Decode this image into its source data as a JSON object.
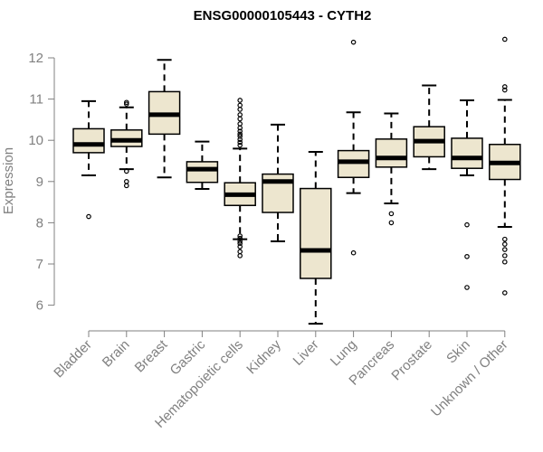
{
  "chart_data": {
    "type": "boxplot",
    "title": "ENSG00000105443 - CYTH2",
    "xlabel": "",
    "ylabel": "Expression",
    "ylim": [
      5.5,
      12.5
    ],
    "yticks": [
      6,
      7,
      8,
      9,
      10,
      11,
      12
    ],
    "box_fill": "#ede6cf",
    "box_stroke": "#000000",
    "axis_color": "#808080",
    "categories": [
      "Bladder",
      "Brain",
      "Breast",
      "Gastric",
      "Hematopoietic cells",
      "Kidney",
      "Liver",
      "Lung",
      "Pancreas",
      "Prostate",
      "Skin",
      "Unknown / Other"
    ],
    "boxes": [
      {
        "category": "Bladder",
        "whisker_low": 9.15,
        "q1": 9.7,
        "median": 9.9,
        "q3": 10.28,
        "whisker_high": 10.95,
        "outliers": [
          8.15
        ]
      },
      {
        "category": "Brain",
        "whisker_low": 9.3,
        "q1": 9.85,
        "median": 10.0,
        "q3": 10.25,
        "whisker_high": 10.8,
        "outliers": [
          8.9,
          9.0,
          9.25,
          10.88,
          10.92
        ]
      },
      {
        "category": "Breast",
        "whisker_low": 9.1,
        "q1": 10.15,
        "median": 10.62,
        "q3": 11.18,
        "whisker_high": 11.95,
        "outliers": []
      },
      {
        "category": "Gastric",
        "whisker_low": 8.82,
        "q1": 8.98,
        "median": 9.3,
        "q3": 9.48,
        "whisker_high": 9.97,
        "outliers": []
      },
      {
        "category": "Hematopoietic cells",
        "whisker_low": 7.6,
        "q1": 8.42,
        "median": 8.68,
        "q3": 8.97,
        "whisker_high": 9.8,
        "outliers": [
          7.2,
          7.3,
          7.42,
          7.5,
          7.55,
          7.62,
          7.68,
          9.88,
          9.95,
          10.02,
          10.1,
          10.15,
          10.22,
          10.3,
          10.4,
          10.52,
          10.62,
          10.75,
          10.85,
          10.97
        ]
      },
      {
        "category": "Kidney",
        "whisker_low": 7.55,
        "q1": 8.25,
        "median": 9.0,
        "q3": 9.18,
        "whisker_high": 10.38,
        "outliers": []
      },
      {
        "category": "Liver",
        "whisker_low": 5.55,
        "q1": 6.65,
        "median": 7.33,
        "q3": 8.83,
        "whisker_high": 9.72,
        "outliers": []
      },
      {
        "category": "Lung",
        "whisker_low": 8.72,
        "q1": 9.1,
        "median": 9.48,
        "q3": 9.75,
        "whisker_high": 10.68,
        "outliers": [
          7.27,
          12.38
        ]
      },
      {
        "category": "Pancreas",
        "whisker_low": 8.47,
        "q1": 9.35,
        "median": 9.57,
        "q3": 10.03,
        "whisker_high": 10.65,
        "outliers": [
          8.0,
          8.22
        ]
      },
      {
        "category": "Prostate",
        "whisker_low": 9.3,
        "q1": 9.6,
        "median": 9.98,
        "q3": 10.33,
        "whisker_high": 11.33,
        "outliers": []
      },
      {
        "category": "Skin",
        "whisker_low": 9.15,
        "q1": 9.32,
        "median": 9.57,
        "q3": 10.05,
        "whisker_high": 10.97,
        "outliers": [
          6.43,
          7.18,
          7.95
        ]
      },
      {
        "category": "Unknown / Other",
        "whisker_low": 7.9,
        "q1": 9.05,
        "median": 9.45,
        "q3": 9.9,
        "whisker_high": 10.98,
        "outliers": [
          6.3,
          7.05,
          7.2,
          7.35,
          7.48,
          7.6,
          11.22,
          11.3,
          12.45
        ]
      }
    ]
  }
}
